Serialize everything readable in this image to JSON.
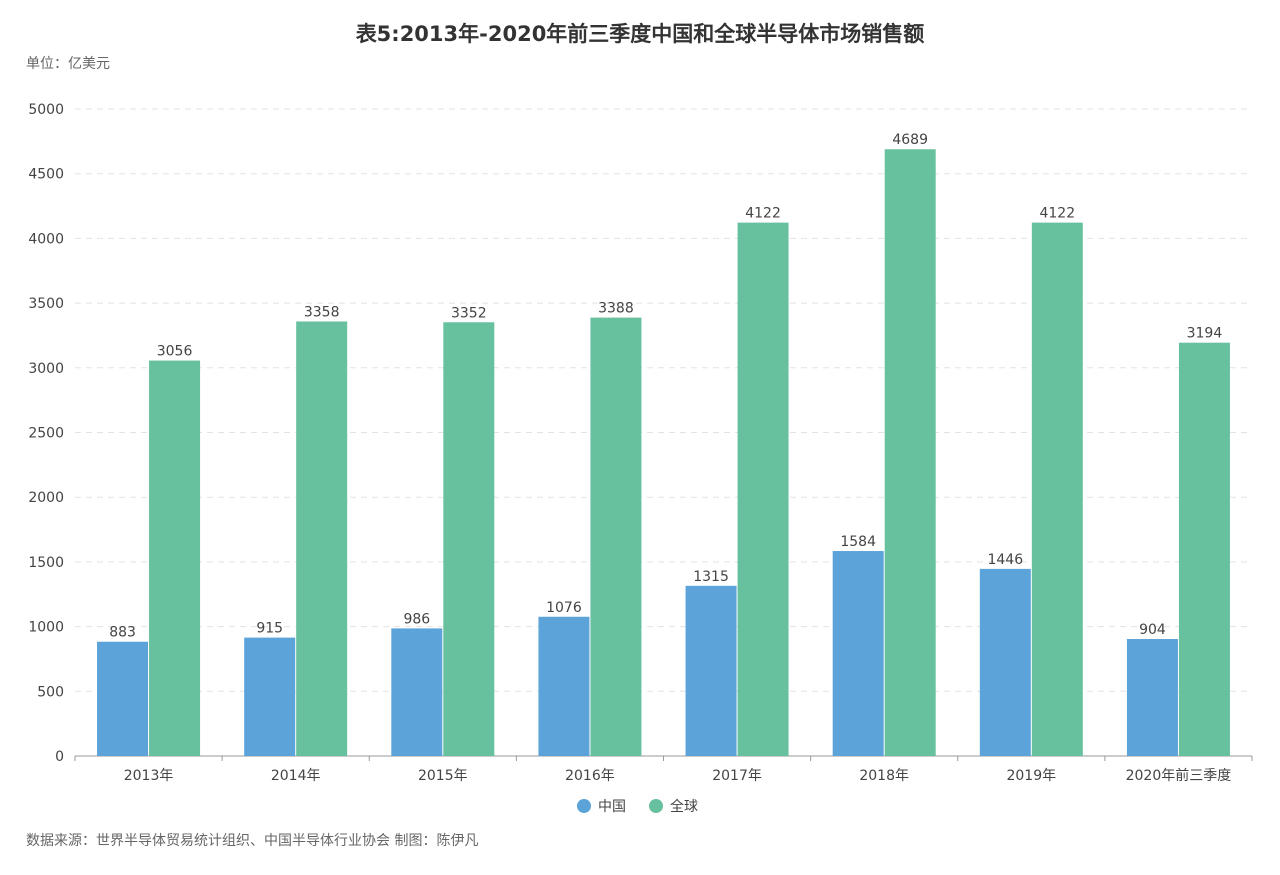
{
  "title": "表5:2013年-2020年前三季度中国和全球半导体市场销售额",
  "unit_label": "单位：亿美元",
  "source_note": "数据来源：世界半导体贸易统计组织、中国半导体行业协会 制图：陈伊凡",
  "chart_data": {
    "type": "bar",
    "categories": [
      "2013年",
      "2014年",
      "2015年",
      "2016年",
      "2017年",
      "2018年",
      "2019年",
      "2020年前三季度"
    ],
    "series": [
      {
        "name": "中国",
        "color": "#5ba3d9",
        "values": [
          883,
          915,
          986,
          1076,
          1315,
          1584,
          1446,
          904
        ]
      },
      {
        "name": "全球",
        "color": "#67c19f",
        "values": [
          3056,
          3358,
          3352,
          3388,
          4122,
          4689,
          4122,
          3194
        ]
      }
    ],
    "ylim": [
      0,
      5000
    ],
    "yticks": [
      0,
      500,
      1000,
      1500,
      2000,
      2500,
      3000,
      3500,
      4000,
      4500,
      5000
    ],
    "grid": true,
    "legend": "bottom-center"
  }
}
